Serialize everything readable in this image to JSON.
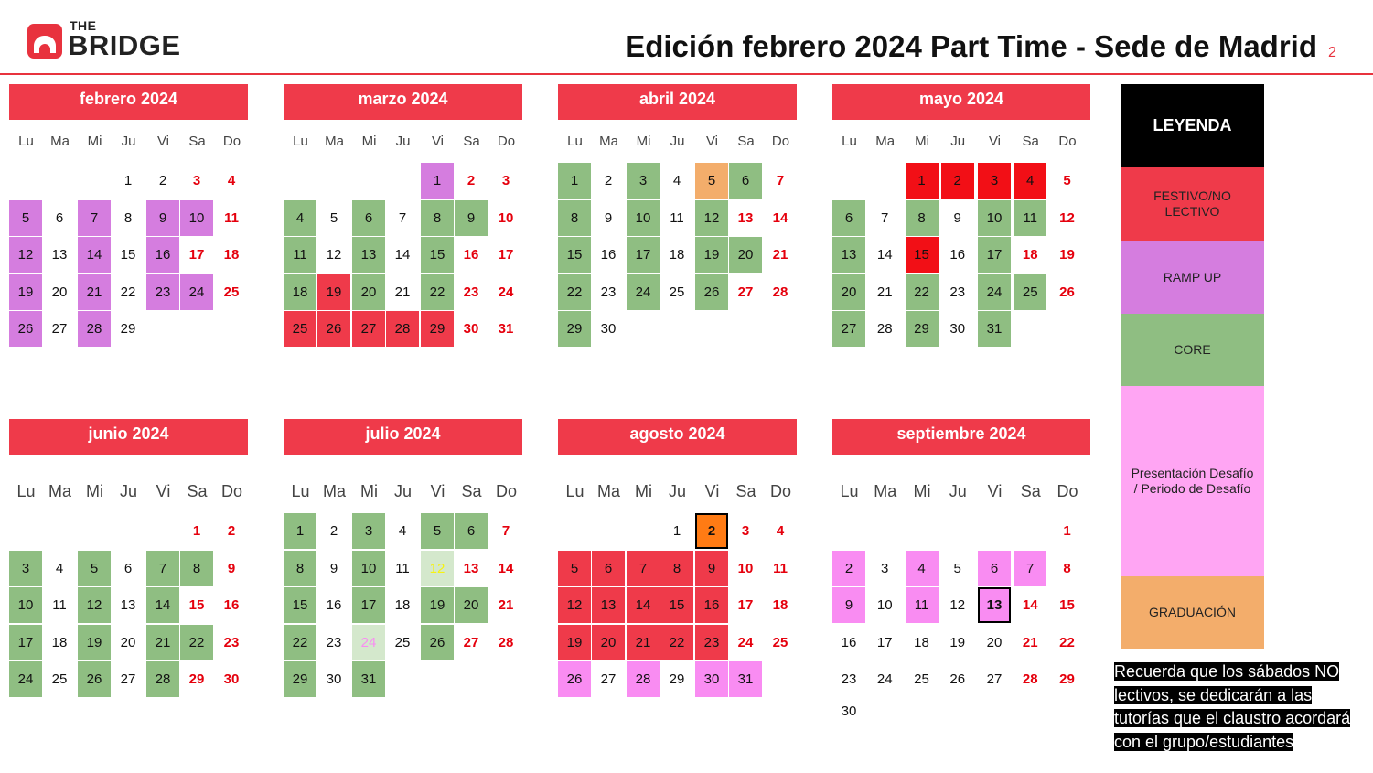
{
  "logo": {
    "small": "THE",
    "big": "BRIDGE"
  },
  "title": "Edición febrero 2024 Part Time - Sede de Madrid",
  "page_number": "2",
  "colors": {
    "header": "#ef3a4a",
    "festivo": "#ef3a4a",
    "festivo_bright": "#f20f16",
    "ramp": "#d57ddf",
    "core": "#8fbe82",
    "core_light": "#d4e8cc",
    "desafio": "#f98cf2",
    "desafio_light": "#ffa5f3",
    "grad": "#f3ad6b",
    "grad_bright": "#ff7b14",
    "highlight_text": "#f7f310",
    "weekend_text": "#e5000d"
  },
  "weekday_labels": [
    "Lu",
    "Ma",
    "Mi",
    "Ju",
    "Vi",
    "Sa",
    "Do"
  ],
  "legend": {
    "title": "LEYENDA",
    "items": [
      {
        "label": "FESTIVO/NO LECTIVO",
        "color": "#ef3a4a"
      },
      {
        "label": "RAMP UP",
        "color": "#d57ddf"
      },
      {
        "label": "CORE",
        "color": "#8fbe82"
      },
      {
        "label": "Presentación Desafío / Periodo de Desafío",
        "color": "#ffa5f3"
      },
      {
        "label": "GRADUACIÓN",
        "color": "#f3ad6b"
      }
    ]
  },
  "note": "Recuerda que los sábados NO lectivos,   se dedicarán a las tutorías que el claustro acordará con el grupo/estudiantes",
  "months": [
    {
      "name": "febrero 2024",
      "first_weekday": 3,
      "days": 29,
      "marks": {
        "5": "ramp",
        "7": "ramp",
        "9": "ramp",
        "10": "ramp",
        "12": "ramp",
        "14": "ramp",
        "16": "ramp",
        "19": "ramp",
        "21": "ramp",
        "23": "ramp",
        "24": "ramp",
        "26": "ramp",
        "28": "ramp"
      }
    },
    {
      "name": "marzo 2024",
      "first_weekday": 4,
      "days": 31,
      "marks": {
        "1": "ramp",
        "4": "core",
        "6": "core",
        "8": "core",
        "9": "core",
        "11": "core",
        "13": "core",
        "15": "core",
        "18": "core",
        "19": "festivo",
        "20": "core",
        "22": "core",
        "25": "festivo",
        "26": "festivo",
        "27": "festivo",
        "28": "festivo",
        "29": "festivo"
      }
    },
    {
      "name": "abril 2024",
      "first_weekday": 0,
      "days": 30,
      "marks": {
        "1": "core",
        "3": "core",
        "5": "grad",
        "6": "core",
        "8": "core",
        "10": "core",
        "12": "core",
        "15": "core",
        "17": "core",
        "19": "core",
        "20": "core",
        "22": "core",
        "24": "core",
        "26": "core",
        "29": "core"
      }
    },
    {
      "name": "mayo 2024",
      "first_weekday": 2,
      "days": 31,
      "marks": {
        "1": "festivo_bright",
        "2": "festivo_bright",
        "3": "festivo_bright",
        "4": "festivo_bright",
        "6": "core",
        "8": "core",
        "10": "core",
        "11": "core",
        "13": "core",
        "15": "festivo_bright",
        "17": "core",
        "20": "core",
        "22": "core",
        "24": "core",
        "25": "core",
        "27": "core",
        "29": "core",
        "31": "core"
      }
    },
    {
      "name": "junio 2024",
      "first_weekday": 5,
      "days": 30,
      "marks": {
        "3": "core",
        "5": "core",
        "7": "core",
        "8": "core",
        "10": "core",
        "12": "core",
        "14": "core",
        "17": "core",
        "19": "core",
        "21": "core",
        "22": "core",
        "24": "core",
        "26": "core",
        "28": "core"
      }
    },
    {
      "name": "julio 2024",
      "first_weekday": 0,
      "days": 31,
      "marks": {
        "1": "core",
        "3": "core",
        "5": "core",
        "6": "core",
        "8": "core",
        "10": "core",
        "12": "core_light_yellow",
        "15": "core",
        "17": "core",
        "19": "core",
        "20": "core",
        "22": "core",
        "24": "core_light_pink",
        "26": "core",
        "29": "core",
        "31": "core"
      }
    },
    {
      "name": "agosto 2024",
      "first_weekday": 3,
      "days": 31,
      "marks": {
        "2": "grad_bright",
        "5": "festivo",
        "6": "festivo",
        "7": "festivo",
        "8": "festivo",
        "9": "festivo",
        "12": "festivo",
        "13": "festivo",
        "14": "festivo",
        "15": "festivo",
        "16": "festivo",
        "19": "festivo",
        "20": "festivo",
        "21": "festivo",
        "22": "festivo",
        "23": "festivo",
        "26": "desafio",
        "28": "desafio",
        "30": "desafio",
        "31": "desafio"
      }
    },
    {
      "name": "septiembre 2024",
      "first_weekday": 6,
      "days": 30,
      "marks": {
        "2": "desafio",
        "4": "desafio",
        "6": "desafio",
        "7": "desafio",
        "9": "desafio",
        "11": "desafio",
        "13": "desafio_box"
      }
    }
  ]
}
